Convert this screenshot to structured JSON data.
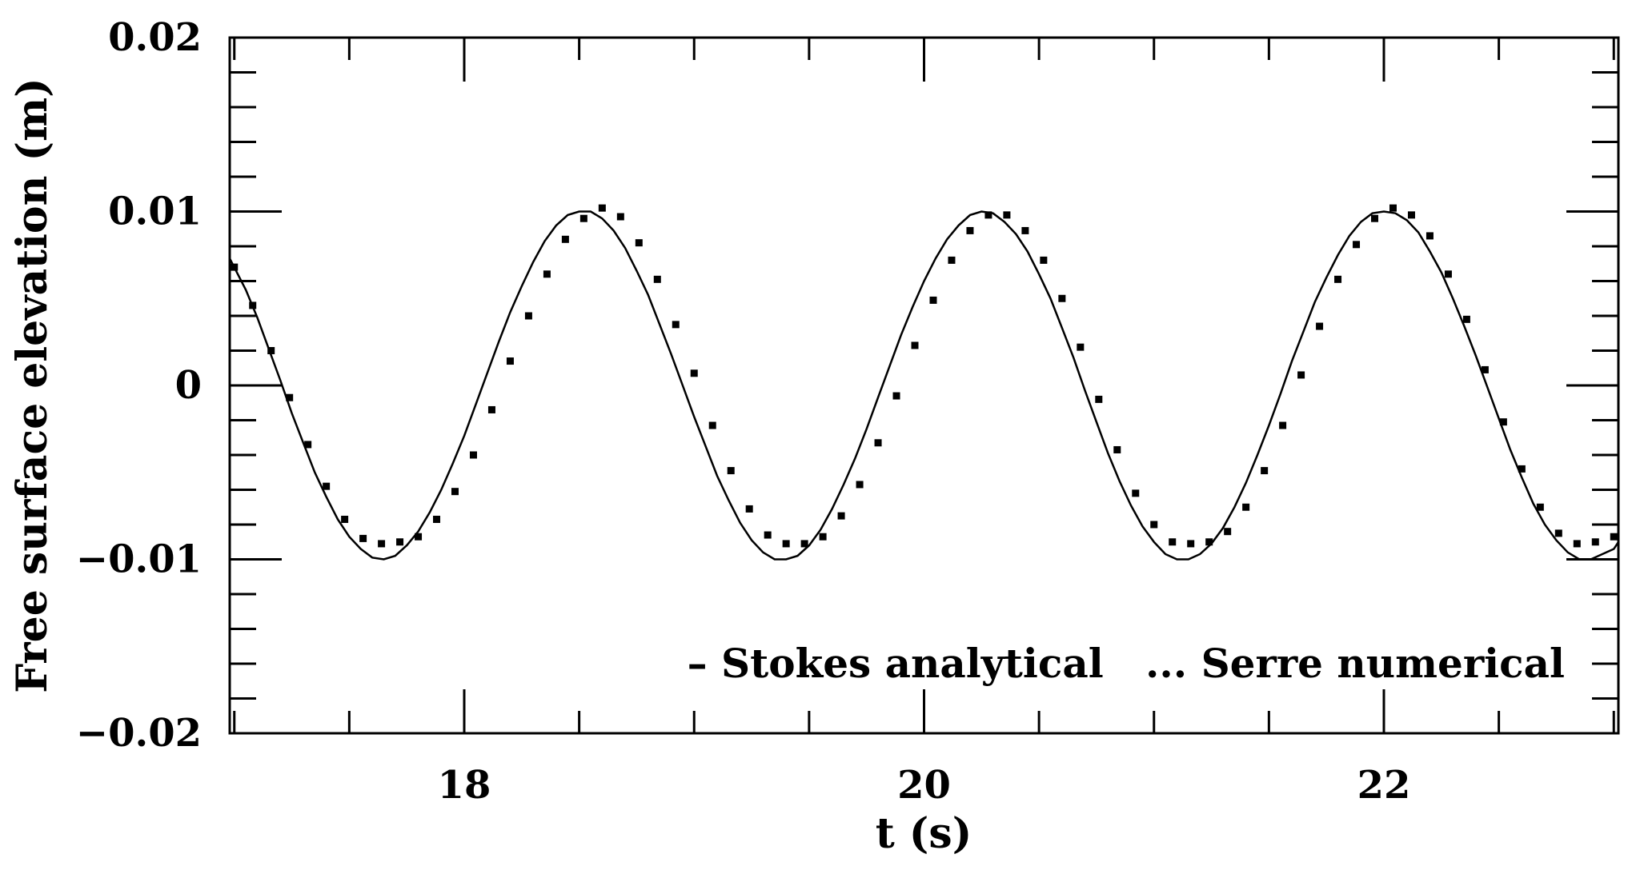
{
  "chart_data": {
    "type": "line",
    "title": "",
    "xlabel": "t (s)",
    "ylabel": "Free surface elevation (m)",
    "xlim": [
      16.98,
      23.02
    ],
    "ylim": [
      -0.02,
      0.02
    ],
    "x_ticks": [
      {
        "value": 18,
        "label": "18"
      },
      {
        "value": 20,
        "label": "20"
      },
      {
        "value": 22,
        "label": "22"
      }
    ],
    "y_ticks": [
      {
        "value": 0.02,
        "label": "0.02"
      },
      {
        "value": 0.01,
        "label": "0.01"
      },
      {
        "value": 0,
        "label": "0"
      },
      {
        "value": -0.01,
        "label": "−0.01"
      },
      {
        "value": -0.02,
        "label": "−0.02"
      }
    ],
    "x_minor_step": 0.5,
    "y_minor_step": 0.002,
    "grid": false,
    "legend_position": "bottom-right",
    "legend_text": "– Stokes analytical   ... Serre numerical",
    "series": [
      {
        "name": "Stokes analytical",
        "style": "solid",
        "x": [
          16.98,
          17.05,
          17.1,
          17.15,
          17.2,
          17.25,
          17.3,
          17.35,
          17.4,
          17.45,
          17.5,
          17.55,
          17.6,
          17.65,
          17.7,
          17.75,
          17.8,
          17.85,
          17.9,
          17.95,
          18.0,
          18.05,
          18.1,
          18.15,
          18.2,
          18.25,
          18.3,
          18.35,
          18.4,
          18.45,
          18.5,
          18.55,
          18.6,
          18.65,
          18.7,
          18.75,
          18.8,
          18.85,
          18.9,
          18.95,
          19.0,
          19.05,
          19.1,
          19.15,
          19.2,
          19.25,
          19.3,
          19.35,
          19.4,
          19.45,
          19.5,
          19.55,
          19.6,
          19.65,
          19.7,
          19.75,
          19.8,
          19.85,
          19.9,
          19.95,
          20.0,
          20.05,
          20.1,
          20.15,
          20.2,
          20.25,
          20.3,
          20.35,
          20.4,
          20.45,
          20.5,
          20.55,
          20.6,
          20.65,
          20.7,
          20.75,
          20.8,
          20.85,
          20.9,
          20.95,
          21.0,
          21.05,
          21.1,
          21.15,
          21.2,
          21.25,
          21.3,
          21.35,
          21.4,
          21.45,
          21.5,
          21.55,
          21.6,
          21.65,
          21.7,
          21.75,
          21.8,
          21.85,
          21.9,
          21.95,
          22.0,
          22.05,
          22.1,
          22.15,
          22.2,
          22.25,
          22.3,
          22.35,
          22.4,
          22.45,
          22.5,
          22.55,
          22.6,
          22.65,
          22.7,
          22.75,
          22.8,
          22.85,
          22.9,
          22.95,
          23.0,
          23.02
        ],
        "y": [
          0.0073,
          0.0055,
          0.0039,
          0.0021,
          0.0003,
          -0.0016,
          -0.0033,
          -0.005,
          -0.0064,
          -0.0077,
          -0.0087,
          -0.0094,
          -0.0099,
          -0.01,
          -0.0098,
          -0.0092,
          -0.0084,
          -0.0073,
          -0.006,
          -0.0045,
          -0.0029,
          -0.0011,
          0.0007,
          0.0025,
          0.0042,
          0.0057,
          0.0071,
          0.0083,
          0.0092,
          0.0098,
          0.01,
          0.01,
          0.0096,
          0.0089,
          0.0079,
          0.0066,
          0.0052,
          0.0035,
          0.0018,
          0.0,
          -0.0018,
          -0.0035,
          -0.0052,
          -0.0066,
          -0.0079,
          -0.0089,
          -0.0096,
          -0.01,
          -0.01,
          -0.0098,
          -0.0092,
          -0.0083,
          -0.0071,
          -0.0057,
          -0.0042,
          -0.0025,
          -0.0007,
          0.0011,
          0.0029,
          0.0045,
          0.006,
          0.0073,
          0.0084,
          0.0092,
          0.0098,
          0.01,
          0.0099,
          0.0094,
          0.0087,
          0.0077,
          0.0064,
          0.005,
          0.0033,
          0.0016,
          -0.0003,
          -0.0021,
          -0.0039,
          -0.0055,
          -0.0069,
          -0.0081,
          -0.009,
          -0.0097,
          -0.01,
          -0.01,
          -0.0097,
          -0.0091,
          -0.0082,
          -0.007,
          -0.0056,
          -0.004,
          -0.0023,
          -0.0005,
          0.0014,
          0.0031,
          0.0048,
          0.0062,
          0.0075,
          0.0086,
          0.0094,
          0.0099,
          0.01,
          0.0099,
          0.0095,
          0.0088,
          0.0077,
          0.0065,
          0.005,
          0.0034,
          0.0017,
          -0.0001,
          -0.0019,
          -0.0037,
          -0.0053,
          -0.0068,
          -0.008,
          -0.0089,
          -0.0096,
          -0.01,
          -0.01,
          -0.0097,
          -0.0094,
          -0.009
        ]
      },
      {
        "name": "Serre numerical",
        "style": "dotted",
        "x": [
          17.0,
          17.08,
          17.16,
          17.24,
          17.32,
          17.4,
          17.48,
          17.56,
          17.64,
          17.72,
          17.8,
          17.88,
          17.96,
          18.04,
          18.12,
          18.2,
          18.28,
          18.36,
          18.44,
          18.52,
          18.6,
          18.68,
          18.76,
          18.84,
          18.92,
          19.0,
          19.08,
          19.16,
          19.24,
          19.32,
          19.4,
          19.48,
          19.56,
          19.64,
          19.72,
          19.8,
          19.88,
          19.96,
          20.04,
          20.12,
          20.2,
          20.28,
          20.36,
          20.44,
          20.52,
          20.6,
          20.68,
          20.76,
          20.84,
          20.92,
          21.0,
          21.08,
          21.16,
          21.24,
          21.32,
          21.4,
          21.48,
          21.56,
          21.64,
          21.72,
          21.8,
          21.88,
          21.96,
          22.04,
          22.12,
          22.2,
          22.28,
          22.36,
          22.44,
          22.52,
          22.6,
          22.68,
          22.76,
          22.84,
          22.92,
          23.0
        ],
        "y": [
          0.0068,
          0.0046,
          0.002,
          -0.0007,
          -0.0034,
          -0.0058,
          -0.0077,
          -0.0088,
          -0.0091,
          -0.009,
          -0.0087,
          -0.0077,
          -0.0061,
          -0.004,
          -0.0014,
          0.0014,
          0.004,
          0.0064,
          0.0084,
          0.0096,
          0.0102,
          0.0097,
          0.0082,
          0.0061,
          0.0035,
          0.0007,
          -0.0023,
          -0.0049,
          -0.0071,
          -0.0086,
          -0.0091,
          -0.0091,
          -0.0087,
          -0.0075,
          -0.0057,
          -0.0033,
          -0.0006,
          0.0023,
          0.0049,
          0.0072,
          0.0089,
          0.0098,
          0.0098,
          0.0089,
          0.0072,
          0.005,
          0.0022,
          -0.0008,
          -0.0037,
          -0.0062,
          -0.008,
          -0.009,
          -0.0091,
          -0.009,
          -0.0084,
          -0.007,
          -0.0049,
          -0.0023,
          0.0006,
          0.0034,
          0.0061,
          0.0081,
          0.0096,
          0.0102,
          0.0098,
          0.0086,
          0.0064,
          0.0038,
          0.0009,
          -0.0021,
          -0.0048,
          -0.007,
          -0.0085,
          -0.0091,
          -0.009,
          -0.0087
        ]
      }
    ]
  }
}
